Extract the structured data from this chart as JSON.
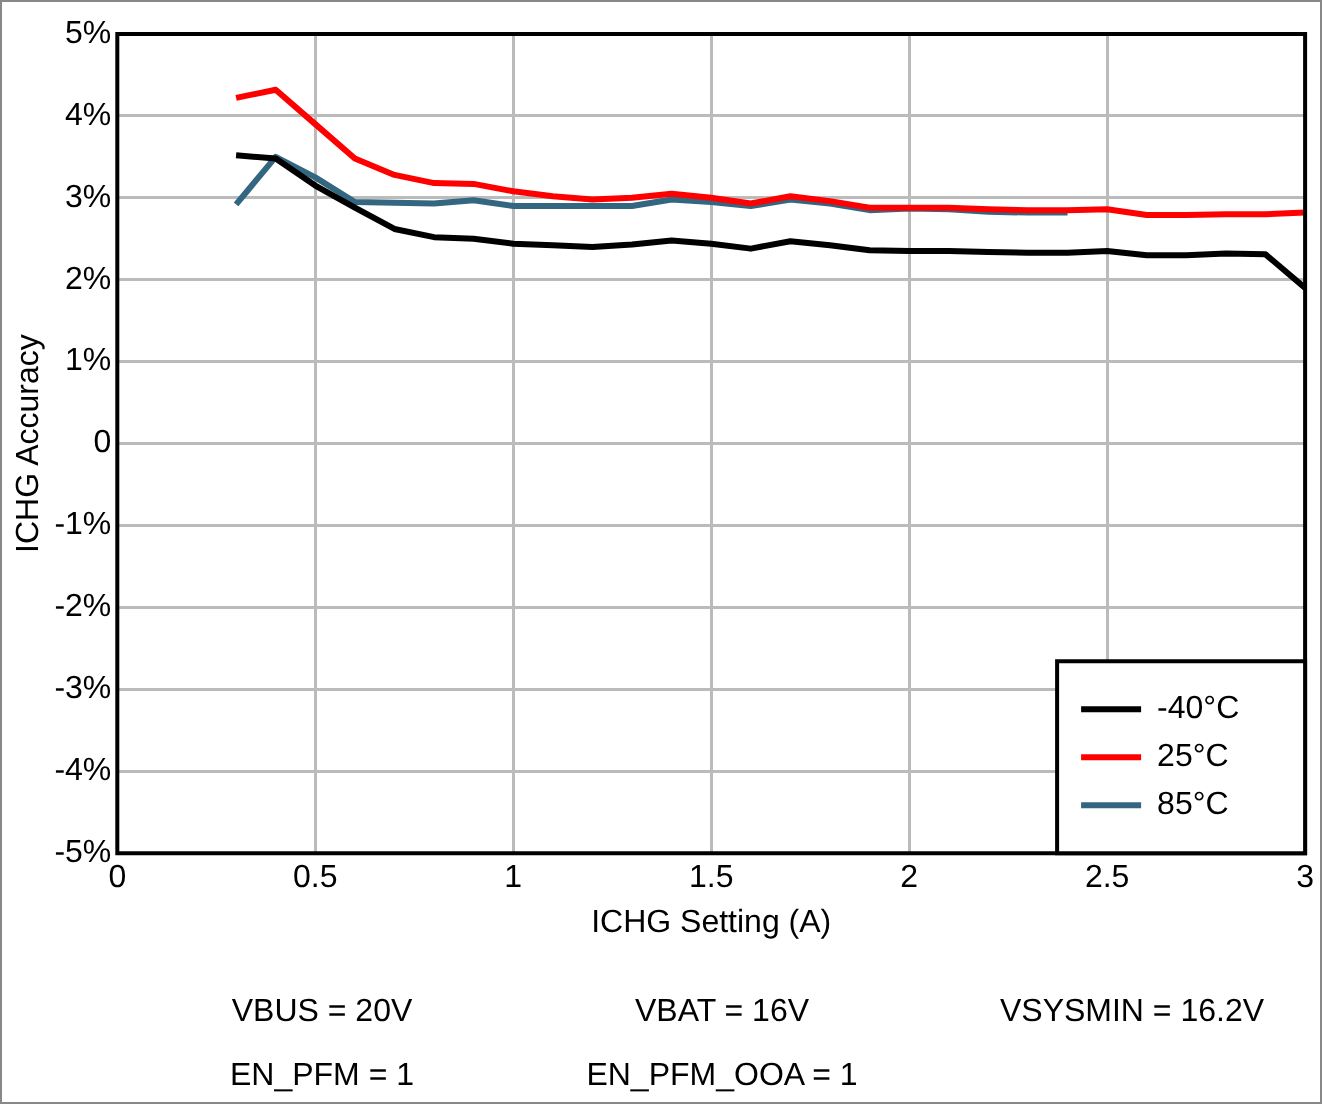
{
  "chart_data": {
    "type": "line",
    "xlabel": "ICHG Setting (A)",
    "ylabel": "ICHG Accuracy",
    "x": [
      0.3,
      0.4,
      0.5,
      0.6,
      0.7,
      0.8,
      0.9,
      1.0,
      1.1,
      1.2,
      1.3,
      1.4,
      1.5,
      1.6,
      1.7,
      1.8,
      1.9,
      2.0,
      2.1,
      2.2,
      2.3,
      2.4,
      2.5,
      2.6,
      2.7,
      2.8,
      2.9,
      3.0
    ],
    "series": [
      {
        "name": "-40°C",
        "color": "#000000",
        "values": [
          3.52,
          3.48,
          3.15,
          2.88,
          2.62,
          2.52,
          2.5,
          2.44,
          2.42,
          2.4,
          2.43,
          2.48,
          2.44,
          2.38,
          2.47,
          2.42,
          2.36,
          2.35,
          2.35,
          2.34,
          2.33,
          2.33,
          2.35,
          2.3,
          2.3,
          2.32,
          2.31,
          1.9
        ]
      },
      {
        "name": "25°C",
        "color": "#ff0000",
        "values": [
          4.22,
          4.32,
          3.9,
          3.48,
          3.28,
          3.18,
          3.17,
          3.08,
          3.02,
          2.98,
          3.0,
          3.05,
          3.0,
          2.93,
          3.02,
          2.96,
          2.88,
          2.88,
          2.88,
          2.86,
          2.85,
          2.85,
          2.86,
          2.79,
          2.79,
          2.8,
          2.8,
          2.82
        ]
      },
      {
        "name": "85°C",
        "color": "#336680",
        "values": [
          2.92,
          3.5,
          3.25,
          2.95,
          2.94,
          2.93,
          2.97,
          2.9,
          2.9,
          2.9,
          2.9,
          2.98,
          2.95,
          2.9,
          2.98,
          2.93,
          2.85,
          2.87,
          2.86,
          2.83,
          2.82,
          2.82,
          null,
          null,
          null,
          null,
          null,
          null
        ]
      }
    ],
    "xlim": [
      0,
      3
    ],
    "xticks": [
      0,
      0.5,
      1,
      1.5,
      2,
      2.5,
      3
    ],
    "ylim": [
      -5,
      5
    ],
    "yticks": [
      {
        "value": -5,
        "label": "-5%"
      },
      {
        "value": -4,
        "label": "-4%"
      },
      {
        "value": -3,
        "label": "-3%"
      },
      {
        "value": -2,
        "label": "-2%"
      },
      {
        "value": -1,
        "label": "-1%"
      },
      {
        "value": 0,
        "label": "0"
      },
      {
        "value": 1,
        "label": "1%"
      },
      {
        "value": 2,
        "label": "2%"
      },
      {
        "value": 3,
        "label": "3%"
      },
      {
        "value": 4,
        "label": "4%"
      },
      {
        "value": 5,
        "label": "5%"
      }
    ],
    "grid": true,
    "legend": "bottom right",
    "marker": "none",
    "line_style": "solid",
    "annotations": [
      "VBUS = 20V",
      "VBAT = 16V",
      "VSYSMIN = 16.2V",
      "EN_PFM = 1",
      "EN_PFM_OOA = 1"
    ]
  }
}
